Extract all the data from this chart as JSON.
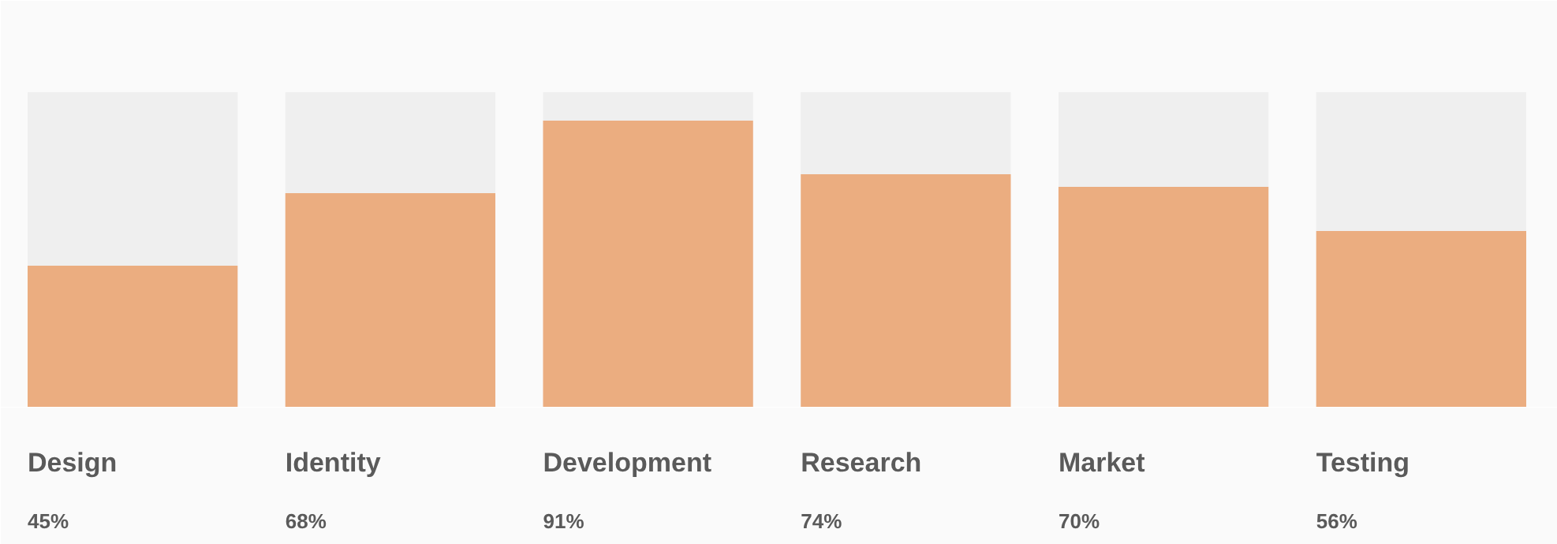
{
  "chart_data": {
    "type": "bar",
    "stacked": true,
    "categories": [
      "Design",
      "Identity",
      "Development",
      "Research",
      "Market",
      "Testing"
    ],
    "series": [
      {
        "color": "#ebad80",
        "values": [
          45,
          68,
          91,
          74,
          70,
          56
        ],
        "value_labels": [
          "45%",
          "68%",
          "91%",
          "74%",
          "70%",
          "56%"
        ]
      },
      {
        "color": "#efefef",
        "values": [
          55,
          32,
          9,
          26,
          30,
          44
        ]
      }
    ],
    "tick_labels": false,
    "grid": false
  }
}
